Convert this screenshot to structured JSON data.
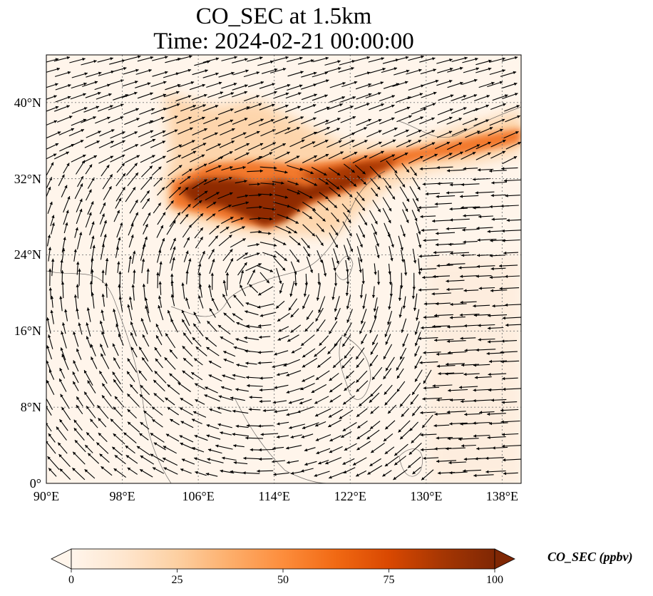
{
  "title_line1": "CO_SEC at 1.5km",
  "title_line2": "Time: 2024-02-21 00:00:00",
  "map": {
    "lon_range": [
      90,
      140
    ],
    "lat_range": [
      0,
      45
    ],
    "lat_ticks": [
      {
        "value": 0,
        "label": "0°"
      },
      {
        "value": 8,
        "label": "8°N"
      },
      {
        "value": 16,
        "label": "16°N"
      },
      {
        "value": 24,
        "label": "24°N"
      },
      {
        "value": 32,
        "label": "32°N"
      },
      {
        "value": 40,
        "label": "40°N"
      }
    ],
    "lon_ticks": [
      {
        "value": 90,
        "label": "90°E"
      },
      {
        "value": 98,
        "label": "98°E"
      },
      {
        "value": 106,
        "label": "106°E"
      },
      {
        "value": 114,
        "label": "114°E"
      },
      {
        "value": 122,
        "label": "122°E"
      },
      {
        "value": 130,
        "label": "130°E"
      },
      {
        "value": 138,
        "label": "138°E"
      }
    ],
    "gridlines": "dotted",
    "field": "CO_SEC",
    "field_units": "ppbv",
    "plume": {
      "description_band_lat": [
        28,
        37
      ],
      "core_max_region_lon": [
        103,
        122
      ],
      "extends_to_lon": 140
    },
    "wind_vectors": true,
    "colormap": [
      "#fff5eb",
      "#fee6ce",
      "#fdd0a2",
      "#fdae6b",
      "#fd8d3c",
      "#f16913",
      "#d94801",
      "#a63603",
      "#7f2704"
    ]
  },
  "colorbar": {
    "label": "CO_SEC (ppbv)",
    "range": [
      0,
      100
    ],
    "extend": "both",
    "ticks": [
      {
        "value": 0,
        "label": "0"
      },
      {
        "value": 25,
        "label": "25"
      },
      {
        "value": 50,
        "label": "50"
      },
      {
        "value": 75,
        "label": "75"
      },
      {
        "value": 100,
        "label": "100"
      }
    ]
  }
}
